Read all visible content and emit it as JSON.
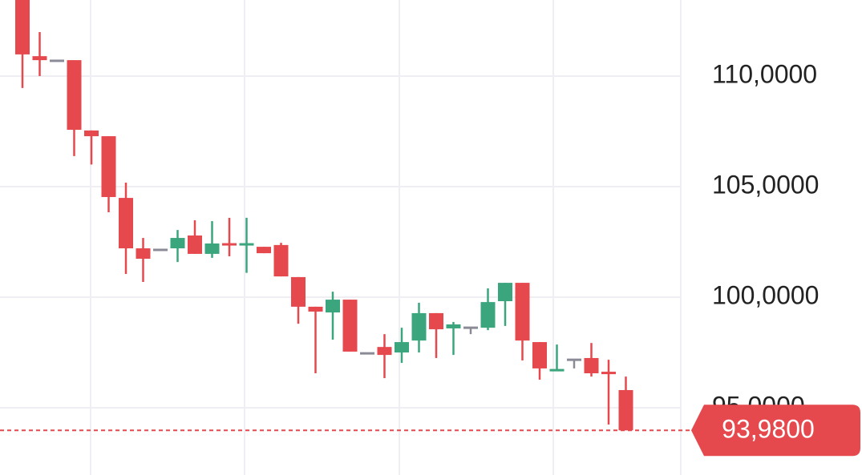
{
  "chart_data": {
    "type": "candlestick",
    "open": [
      113.44,
      110.9,
      110.69,
      110.72,
      107.54,
      107.28,
      104.49,
      102.21,
      102.14,
      102.21,
      102.79,
      101.96,
      102.39,
      102.36,
      102.28,
      102.36,
      100.91,
      99.57,
      99.31,
      99.89,
      97.46,
      97.75,
      97.5,
      98.04,
      99.28,
      98.59,
      98.62,
      98.62,
      99.82,
      100.65,
      97.97,
      96.67,
      97.17,
      97.25,
      96.63,
      95.8
    ],
    "high": [
      113.44,
      111.99,
      110.69,
      110.72,
      107.54,
      107.28,
      105.18,
      102.68,
      102.14,
      103.04,
      103.48,
      103.44,
      103.59,
      103.59,
      102.28,
      102.46,
      100.91,
      99.57,
      100.25,
      99.89,
      97.46,
      98.33,
      98.62,
      99.75,
      99.28,
      98.88,
      98.62,
      100.4,
      100.65,
      100.65,
      97.97,
      97.86,
      97.17,
      97.93,
      97.17,
      96.41
    ],
    "low": [
      109.46,
      110.0,
      110.69,
      106.38,
      106.0,
      103.84,
      101.05,
      100.69,
      102.14,
      101.59,
      101.96,
      101.78,
      101.85,
      101.1,
      101.99,
      100.94,
      98.8,
      96.56,
      98.08,
      97.54,
      97.46,
      96.34,
      97.03,
      97.5,
      97.25,
      97.39,
      98.33,
      98.51,
      98.7,
      97.14,
      96.27,
      96.67,
      96.78,
      96.41,
      94.24,
      93.98
    ],
    "close": [
      110.98,
      110.72,
      110.69,
      107.57,
      107.28,
      104.53,
      102.21,
      101.74,
      102.14,
      102.68,
      101.96,
      102.43,
      102.36,
      102.39,
      101.99,
      100.94,
      99.57,
      99.35,
      99.89,
      97.54,
      97.46,
      97.39,
      97.97,
      99.28,
      98.55,
      98.77,
      98.62,
      99.78,
      100.65,
      98.04,
      96.78,
      96.7,
      97.17,
      96.56,
      96.52,
      93.98
    ],
    "up_color": "#3ba57d",
    "down_color": "#e5484d",
    "flat_color": "#8b8b98",
    "ylim": [
      91.96,
      113.44
    ],
    "yticks": [
      {
        "value": 95,
        "label": "95,0000"
      },
      {
        "value": 100,
        "label": "100,0000"
      },
      {
        "value": 105,
        "label": "105,0000"
      },
      {
        "value": 110,
        "label": "110,0000"
      }
    ],
    "grid": true,
    "last_price": {
      "value": 93.98,
      "label": "93,9800"
    }
  }
}
